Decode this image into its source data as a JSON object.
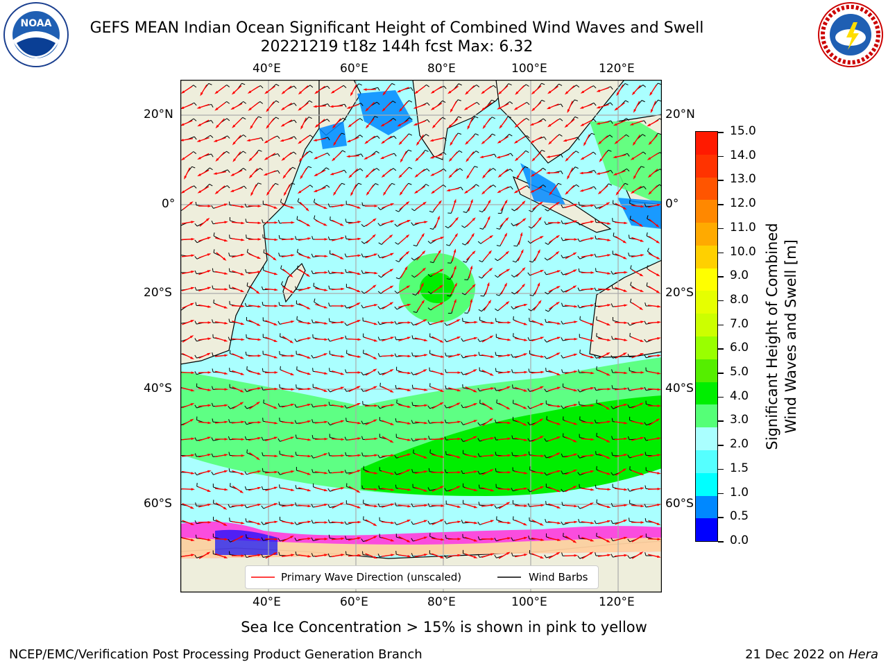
{
  "title": {
    "line1": "GEFS MEAN Indian Ocean Significant Height of Combined Wind Waves and Swell",
    "line2": "20221219 t18z 144h fcst   Max: 6.32"
  },
  "map": {
    "lon_labels": [
      "40°E",
      "60°E",
      "80°E",
      "100°E",
      "120°E"
    ],
    "lat_labels": [
      "20°N",
      "0°",
      "20°S",
      "40°S",
      "60°S"
    ],
    "legend": {
      "wave_dir": "Primary Wave Direction (unscaled)",
      "wind": "Wind Barbs"
    },
    "colors": {
      "land": "#eeeedc",
      "ocean_low": "#aaffff",
      "mid": "#55ff77",
      "high": "#00e600"
    }
  },
  "colorbar": {
    "label_line1": "Significant Height of Combined",
    "label_line2": "Wind Waves and Swell [m]",
    "ticks": [
      "15.0",
      "14.0",
      "13.0",
      "12.0",
      "11.0",
      "10.0",
      "9.0",
      "8.0",
      "7.0",
      "6.0",
      "5.0",
      "4.0",
      "3.0",
      "2.0",
      "1.5",
      "1.0",
      "0.5",
      "0.0"
    ],
    "colors": [
      "#ff1a00",
      "#ff3300",
      "#ff5500",
      "#ff8800",
      "#ffaa00",
      "#ffd000",
      "#ffff00",
      "#e6ff00",
      "#ccff00",
      "#99ff00",
      "#55ee00",
      "#00ee00",
      "#55ff77",
      "#aaffff",
      "#55ffff",
      "#00ffff",
      "#0088ff",
      "#0000ff"
    ]
  },
  "footer": {
    "note": "Sea Ice Concentration > 15% is shown in pink to yellow",
    "org": "NCEP/EMC/Verification Post Processing Product Generation Branch",
    "date": "21 Dec 2022 on ",
    "host": "Hera"
  },
  "logos": {
    "noaa": "NOAA",
    "nws": "NATIONAL WEATHER SERVICE"
  }
}
